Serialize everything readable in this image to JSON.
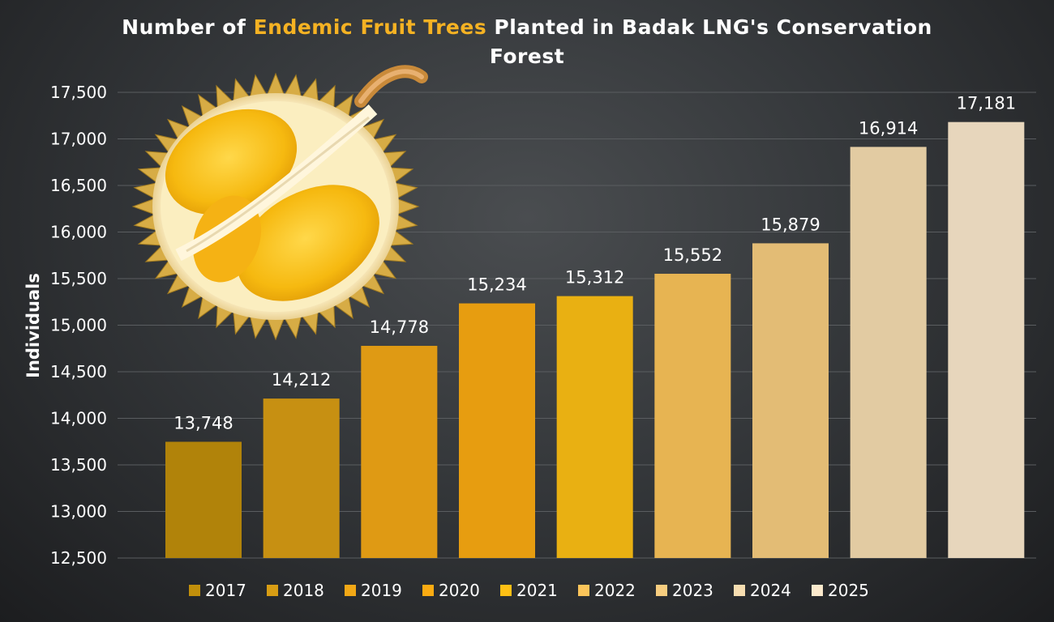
{
  "chart_data": {
    "type": "bar",
    "title_parts": [
      "Number of ",
      "Endemic Fruit Trees",
      " Planted in Badak LNG's Conservation",
      "Forest"
    ],
    "ylabel": "Individuals",
    "xlabel": "",
    "ylim": [
      12500,
      17500
    ],
    "y_ticks": [
      "12,500",
      "13,000",
      "13,500",
      "14,000",
      "14,500",
      "15,000",
      "15,500",
      "16,000",
      "16,500",
      "17,000",
      "17,500"
    ],
    "grid": true,
    "legend_position": "bottom",
    "categories": [
      "2017",
      "2018",
      "2019",
      "2020",
      "2021",
      "2022",
      "2023",
      "2024",
      "2025"
    ],
    "values": [
      13748,
      14212,
      14778,
      15234,
      15312,
      15552,
      15879,
      16914,
      17181
    ],
    "value_labels": [
      "13,748",
      "14,212",
      "14,778",
      "15,234",
      "15,312",
      "15,552",
      "15,879",
      "16,914",
      "17,181"
    ],
    "colors": [
      "#c18f0b",
      "#d89d14",
      "#f2a816",
      "#fbab12",
      "#fdbf14",
      "#fbc45a",
      "#f7cd7f",
      "#f6ddb0",
      "#fbe9cc"
    ],
    "highlight_color": "#f5b223"
  },
  "illustration": "durian-fruit"
}
